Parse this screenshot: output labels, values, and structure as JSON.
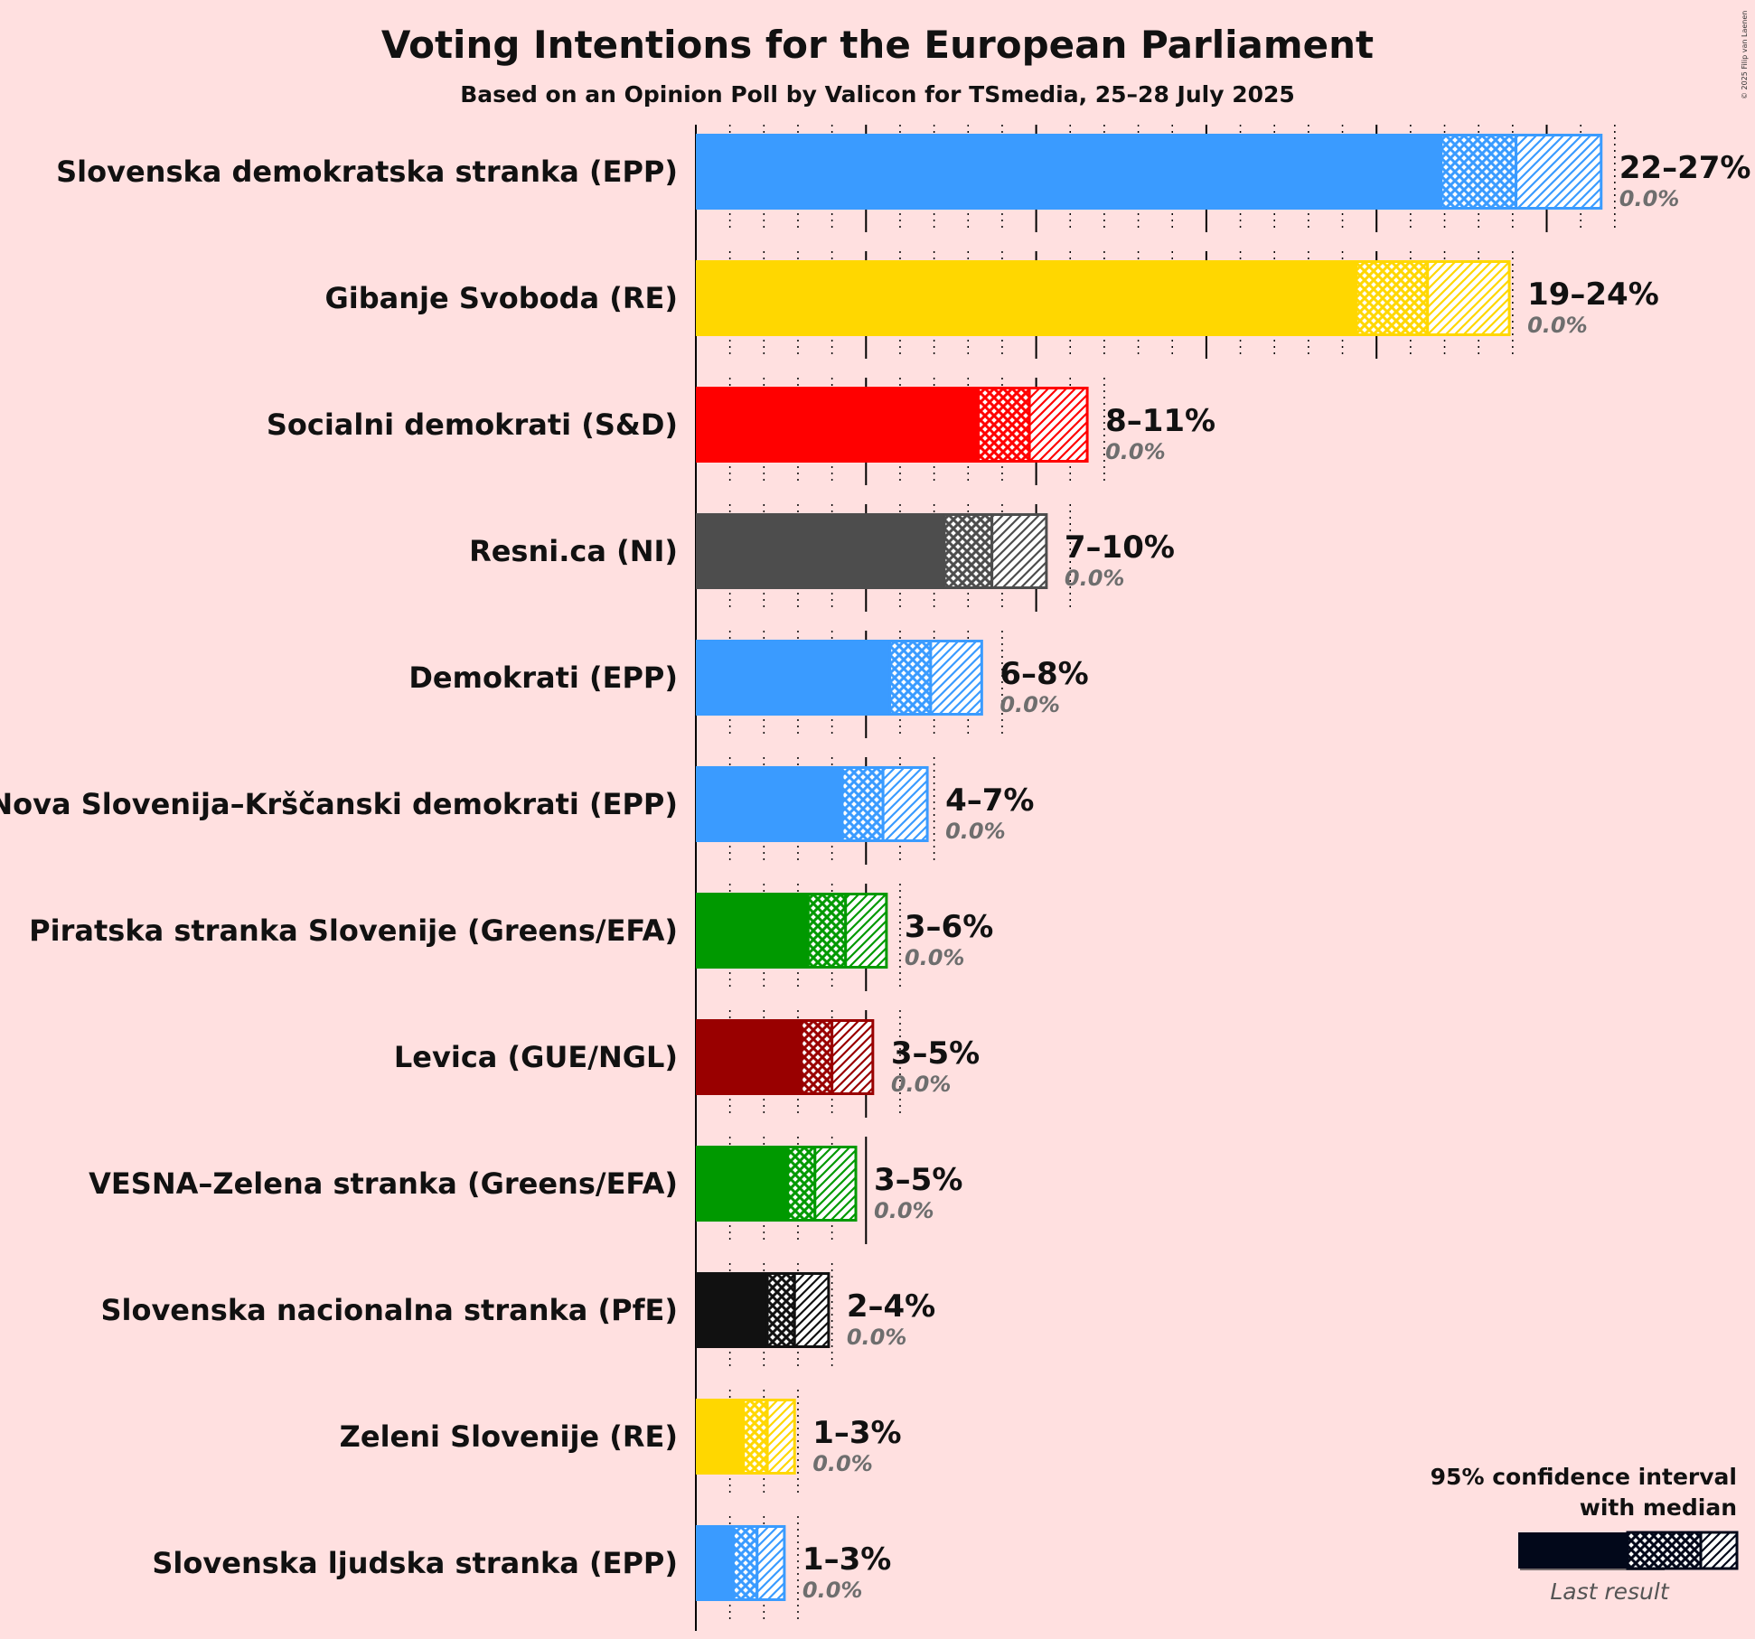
{
  "title": "Voting Intentions for the European Parliament",
  "subtitle": "Based on an Opinion Poll by Valicon for TSmedia, 25–28 July 2025",
  "copyright": "© 2025 Filip van Laenen",
  "legend": {
    "title_line1": "95% confidence interval",
    "title_line2": "with median",
    "last_result_label": "Last result",
    "placement": "bottom-right"
  },
  "chart_data": {
    "type": "bar",
    "orientation": "horizontal",
    "xlim": [
      0,
      30
    ],
    "grid": true,
    "grid_major_every": 5,
    "grid_minor_every": 1,
    "series": [
      {
        "party": "Slovenska demokratska stranka (EPP)",
        "color": "#3A9BFF",
        "ci_low": 21.9,
        "median": 24.1,
        "ci_high": 26.6,
        "range_label": "22–27%",
        "last_result_label": "0.0%",
        "last_result": 0.0
      },
      {
        "party": "Gibanje Svoboda (RE)",
        "color": "#FFD700",
        "ci_low": 19.4,
        "median": 21.5,
        "ci_high": 23.9,
        "range_label": "19–24%",
        "last_result_label": "0.0%",
        "last_result": 0.0
      },
      {
        "party": "Socialni demokrati (S&D)",
        "color": "#FF0000",
        "ci_low": 8.3,
        "median": 9.8,
        "ci_high": 11.5,
        "range_label": "8–11%",
        "last_result_label": "0.0%",
        "last_result": 0.0
      },
      {
        "party": "Resni.ca (NI)",
        "color": "#4D4D4D",
        "ci_low": 7.3,
        "median": 8.7,
        "ci_high": 10.3,
        "range_label": "7–10%",
        "last_result_label": "0.0%",
        "last_result": 0.0
      },
      {
        "party": "Demokrati (EPP)",
        "color": "#3A9BFF",
        "ci_low": 5.7,
        "median": 6.9,
        "ci_high": 8.4,
        "range_label": "6–8%",
        "last_result_label": "0.0%",
        "last_result": 0.0
      },
      {
        "party": "Nova Slovenija–Krščanski demokrati (EPP)",
        "color": "#3A9BFF",
        "ci_low": 4.3,
        "median": 5.5,
        "ci_high": 6.8,
        "range_label": "4–7%",
        "last_result_label": "0.0%",
        "last_result": 0.0
      },
      {
        "party": "Piratska stranka Slovenije (Greens/EFA)",
        "color": "#009900",
        "ci_low": 3.3,
        "median": 4.4,
        "ci_high": 5.6,
        "range_label": "3–6%",
        "last_result_label": "0.0%",
        "last_result": 0.0
      },
      {
        "party": "Levica (GUE/NGL)",
        "color": "#990000",
        "ci_low": 3.1,
        "median": 4.0,
        "ci_high": 5.2,
        "range_label": "3–5%",
        "last_result_label": "0.0%",
        "last_result": 0.0
      },
      {
        "party": "VESNA–Zelena stranka (Greens/EFA)",
        "color": "#009900",
        "ci_low": 2.7,
        "median": 3.5,
        "ci_high": 4.7,
        "range_label": "3–5%",
        "last_result_label": "0.0%",
        "last_result": 0.0
      },
      {
        "party": "Slovenska nacionalna stranka (PfE)",
        "color": "#111111",
        "ci_low": 2.1,
        "median": 2.9,
        "ci_high": 3.9,
        "range_label": "2–4%",
        "last_result_label": "0.0%",
        "last_result": 0.0
      },
      {
        "party": "Zeleni Slovenije (RE)",
        "color": "#FFD700",
        "ci_low": 1.4,
        "median": 2.1,
        "ci_high": 2.9,
        "range_label": "1–3%",
        "last_result_label": "0.0%",
        "last_result": 0.0
      },
      {
        "party": "Slovenska ljudska stranka (EPP)",
        "color": "#3A9BFF",
        "ci_low": 1.1,
        "median": 1.8,
        "ci_high": 2.6,
        "range_label": "1–3%",
        "last_result_label": "0.0%",
        "last_result": 0.0
      }
    ]
  }
}
